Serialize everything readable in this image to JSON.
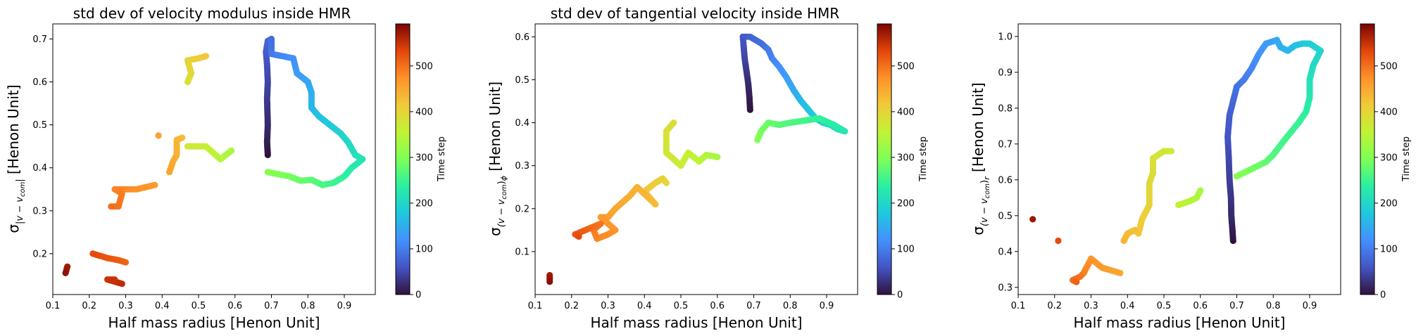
{
  "figure": {
    "colorbar_label": "Time step",
    "colormap": "turbo",
    "colorbar_ticks": [
      0,
      100,
      200,
      300,
      400,
      500
    ],
    "time_range": [
      0,
      592
    ]
  },
  "chart_data": [
    {
      "type": "scatter",
      "title": "std dev of velocity modulus inside HMR",
      "xlabel": "Half mass radius [Henon Unit]",
      "ylabel_main": "σ",
      "ylabel_sub": "|v − v",
      "ylabel_subsub": "com",
      "ylabel_subend": "|",
      "ylabel_rest": " [Henon Unit]",
      "xlim": [
        0.1,
        0.985
      ],
      "ylim": [
        0.105,
        0.735
      ],
      "xticks": [
        0.1,
        0.2,
        0.3,
        0.4,
        0.5,
        0.6,
        0.7,
        0.8,
        0.9
      ],
      "xticklabels": [
        "0.1",
        "0.2",
        "0.3",
        "0.4",
        "0.5",
        "0.6",
        "0.7",
        "0.8",
        "0.9"
      ],
      "yticks": [
        0.2,
        0.3,
        0.4,
        0.5,
        0.6,
        0.7
      ],
      "yticklabels": [
        "0.2",
        "0.3",
        "0.4",
        "0.5",
        "0.6",
        "0.7"
      ],
      "trajectory": [
        [
          0.69,
          0.43,
          0
        ],
        [
          0.688,
          0.46,
          10
        ],
        [
          0.69,
          0.5,
          20
        ],
        [
          0.688,
          0.56,
          35
        ],
        [
          0.69,
          0.6,
          45
        ],
        [
          0.688,
          0.64,
          55
        ],
        [
          0.685,
          0.67,
          65
        ],
        [
          0.69,
          0.695,
          75
        ],
        [
          0.7,
          0.7,
          85
        ],
        [
          0.7,
          0.665,
          95
        ],
        [
          0.73,
          0.66,
          110
        ],
        [
          0.76,
          0.655,
          120
        ],
        [
          0.77,
          0.62,
          130
        ],
        [
          0.8,
          0.6,
          140
        ],
        [
          0.81,
          0.575,
          150
        ],
        [
          0.81,
          0.54,
          160
        ],
        [
          0.83,
          0.52,
          170
        ],
        [
          0.86,
          0.5,
          180
        ],
        [
          0.89,
          0.48,
          190
        ],
        [
          0.91,
          0.46,
          200
        ],
        [
          0.93,
          0.43,
          210
        ],
        [
          0.95,
          0.42,
          218
        ],
        [
          0.92,
          0.4,
          228
        ],
        [
          0.9,
          0.38,
          238
        ],
        [
          0.87,
          0.365,
          250
        ],
        [
          0.84,
          0.36,
          260
        ],
        [
          0.81,
          0.372,
          270
        ],
        [
          0.78,
          0.37,
          280
        ],
        [
          0.75,
          0.38,
          290
        ],
        [
          0.72,
          0.385,
          298
        ],
        [
          0.69,
          0.39,
          305
        ],
        [
          0.59,
          0.44,
          330
        ],
        [
          0.575,
          0.43,
          338
        ],
        [
          0.56,
          0.42,
          345
        ],
        [
          0.52,
          0.45,
          360
        ],
        [
          0.47,
          0.45,
          370
        ],
        [
          0.47,
          0.6,
          385
        ],
        [
          0.48,
          0.62,
          392
        ],
        [
          0.47,
          0.65,
          400
        ],
        [
          0.5,
          0.655,
          410
        ],
        [
          0.52,
          0.66,
          418
        ],
        [
          0.455,
          0.47,
          428
        ],
        [
          0.44,
          0.465,
          434
        ],
        [
          0.44,
          0.43,
          440
        ],
        [
          0.43,
          0.415,
          446
        ],
        [
          0.42,
          0.39,
          452
        ],
        [
          0.39,
          0.475,
          458
        ],
        [
          0.38,
          0.36,
          465
        ],
        [
          0.33,
          0.35,
          472
        ],
        [
          0.3,
          0.35,
          478
        ],
        [
          0.27,
          0.35,
          484
        ],
        [
          0.29,
          0.34,
          490
        ],
        [
          0.28,
          0.31,
          496
        ],
        [
          0.26,
          0.31,
          500
        ],
        [
          0.3,
          0.18,
          508
        ],
        [
          0.28,
          0.185,
          514
        ],
        [
          0.25,
          0.19,
          520
        ],
        [
          0.21,
          0.2,
          530
        ],
        [
          0.27,
          0.14,
          540
        ],
        [
          0.25,
          0.14,
          548
        ],
        [
          0.29,
          0.13,
          555
        ],
        [
          0.14,
          0.17,
          570
        ],
        [
          0.135,
          0.155,
          580
        ]
      ]
    },
    {
      "type": "scatter",
      "title": "std dev of tangential velocity inside HMR",
      "xlabel": "Half mass radius [Henon Unit]",
      "ylabel_main": "σ",
      "ylabel_sub": "(v − v",
      "ylabel_subsub": "com",
      "ylabel_subend": ")",
      "ylabel_phi": "ϕ",
      "ylabel_rest": " [Henon Unit]",
      "xlim": [
        0.1,
        0.985
      ],
      "ylim": [
        0.0,
        0.63
      ],
      "xticks": [
        0.1,
        0.2,
        0.3,
        0.4,
        0.5,
        0.6,
        0.7,
        0.8,
        0.9
      ],
      "xticklabels": [
        "0.1",
        "0.2",
        "0.3",
        "0.4",
        "0.5",
        "0.6",
        "0.7",
        "0.8",
        "0.9"
      ],
      "yticks": [
        0.1,
        0.2,
        0.3,
        0.4,
        0.5,
        0.6
      ],
      "yticklabels": [
        "0.1",
        "0.2",
        "0.3",
        "0.4",
        "0.5",
        "0.6"
      ],
      "trajectory": [
        [
          0.69,
          0.43,
          0
        ],
        [
          0.688,
          0.46,
          10
        ],
        [
          0.685,
          0.49,
          20
        ],
        [
          0.68,
          0.52,
          32
        ],
        [
          0.675,
          0.55,
          44
        ],
        [
          0.67,
          0.6,
          60
        ],
        [
          0.69,
          0.6,
          72
        ],
        [
          0.72,
          0.585,
          85
        ],
        [
          0.74,
          0.57,
          95
        ],
        [
          0.75,
          0.55,
          105
        ],
        [
          0.77,
          0.53,
          118
        ],
        [
          0.79,
          0.505,
          130
        ],
        [
          0.81,
          0.475,
          145
        ],
        [
          0.83,
          0.45,
          160
        ],
        [
          0.85,
          0.43,
          172
        ],
        [
          0.87,
          0.41,
          185
        ],
        [
          0.89,
          0.4,
          195
        ],
        [
          0.91,
          0.395,
          205
        ],
        [
          0.93,
          0.385,
          215
        ],
        [
          0.95,
          0.38,
          222
        ],
        [
          0.92,
          0.395,
          232
        ],
        [
          0.88,
          0.41,
          242
        ],
        [
          0.84,
          0.405,
          252
        ],
        [
          0.8,
          0.4,
          262
        ],
        [
          0.77,
          0.395,
          270
        ],
        [
          0.74,
          0.4,
          280
        ],
        [
          0.72,
          0.38,
          290
        ],
        [
          0.71,
          0.36,
          298
        ],
        [
          0.6,
          0.32,
          330
        ],
        [
          0.57,
          0.325,
          340
        ],
        [
          0.55,
          0.31,
          350
        ],
        [
          0.52,
          0.33,
          358
        ],
        [
          0.5,
          0.3,
          365
        ],
        [
          0.46,
          0.33,
          372
        ],
        [
          0.46,
          0.38,
          380
        ],
        [
          0.48,
          0.4,
          388
        ],
        [
          0.46,
          0.26,
          395
        ],
        [
          0.45,
          0.27,
          402
        ],
        [
          0.43,
          0.26,
          410
        ],
        [
          0.4,
          0.24,
          418
        ],
        [
          0.42,
          0.22,
          425
        ],
        [
          0.43,
          0.21,
          430
        ],
        [
          0.38,
          0.25,
          438
        ],
        [
          0.36,
          0.23,
          444
        ],
        [
          0.32,
          0.2,
          452
        ],
        [
          0.3,
          0.18,
          458
        ],
        [
          0.28,
          0.18,
          464
        ],
        [
          0.32,
          0.15,
          470
        ],
        [
          0.3,
          0.14,
          476
        ],
        [
          0.27,
          0.13,
          482
        ],
        [
          0.26,
          0.15,
          488
        ],
        [
          0.28,
          0.165,
          494
        ],
        [
          0.21,
          0.14,
          520
        ],
        [
          0.22,
          0.135,
          528
        ],
        [
          0.14,
          0.045,
          570
        ],
        [
          0.14,
          0.03,
          582
        ]
      ]
    },
    {
      "type": "scatter",
      "title": "",
      "xlabel": "Half mass radius [Henon Unit]",
      "ylabel_main": "σ",
      "ylabel_sub": "(v − v",
      "ylabel_subsub": "com",
      "ylabel_subend": ")",
      "ylabel_phi": "r",
      "ylabel_rest": " [Henon Unit]",
      "xlim": [
        0.1,
        0.985
      ],
      "ylim": [
        0.28,
        1.035
      ],
      "xticks": [
        0.1,
        0.2,
        0.3,
        0.4,
        0.5,
        0.6,
        0.7,
        0.8,
        0.9
      ],
      "xticklabels": [
        "0.1",
        "0.2",
        "0.3",
        "0.4",
        "0.5",
        "0.6",
        "0.7",
        "0.8",
        "0.9"
      ],
      "yticks": [
        0.3,
        0.4,
        0.5,
        0.6,
        0.7,
        0.8,
        0.9,
        1.0
      ],
      "yticklabels": [
        "0.3",
        "0.4",
        "0.5",
        "0.6",
        "0.7",
        "0.8",
        "0.9",
        "1.0"
      ],
      "trajectory": [
        [
          0.69,
          0.43,
          0
        ],
        [
          0.688,
          0.46,
          10
        ],
        [
          0.685,
          0.5,
          20
        ],
        [
          0.684,
          0.55,
          30
        ],
        [
          0.68,
          0.6,
          40
        ],
        [
          0.678,
          0.66,
          48
        ],
        [
          0.675,
          0.72,
          58
        ],
        [
          0.68,
          0.78,
          68
        ],
        [
          0.69,
          0.82,
          78
        ],
        [
          0.7,
          0.86,
          88
        ],
        [
          0.72,
          0.88,
          98
        ],
        [
          0.74,
          0.91,
          108
        ],
        [
          0.76,
          0.95,
          118
        ],
        [
          0.78,
          0.98,
          128
        ],
        [
          0.81,
          0.99,
          140
        ],
        [
          0.82,
          0.97,
          150
        ],
        [
          0.84,
          0.96,
          160
        ],
        [
          0.86,
          0.975,
          170
        ],
        [
          0.88,
          0.98,
          178
        ],
        [
          0.9,
          0.98,
          186
        ],
        [
          0.93,
          0.96,
          194
        ],
        [
          0.91,
          0.92,
          204
        ],
        [
          0.9,
          0.88,
          214
        ],
        [
          0.9,
          0.83,
          224
        ],
        [
          0.89,
          0.79,
          234
        ],
        [
          0.87,
          0.76,
          244
        ],
        [
          0.83,
          0.71,
          254
        ],
        [
          0.8,
          0.67,
          264
        ],
        [
          0.78,
          0.65,
          274
        ],
        [
          0.75,
          0.635,
          284
        ],
        [
          0.72,
          0.62,
          294
        ],
        [
          0.7,
          0.61,
          302
        ],
        [
          0.6,
          0.57,
          330
        ],
        [
          0.59,
          0.55,
          338
        ],
        [
          0.57,
          0.54,
          346
        ],
        [
          0.54,
          0.53,
          356
        ],
        [
          0.52,
          0.68,
          365
        ],
        [
          0.5,
          0.68,
          372
        ],
        [
          0.47,
          0.66,
          380
        ],
        [
          0.47,
          0.62,
          388
        ],
        [
          0.46,
          0.59,
          395
        ],
        [
          0.46,
          0.53,
          402
        ],
        [
          0.44,
          0.49,
          410
        ],
        [
          0.43,
          0.45,
          418
        ],
        [
          0.42,
          0.46,
          424
        ],
        [
          0.4,
          0.45,
          430
        ],
        [
          0.39,
          0.43,
          436
        ],
        [
          0.38,
          0.34,
          450
        ],
        [
          0.33,
          0.355,
          462
        ],
        [
          0.3,
          0.38,
          470
        ],
        [
          0.29,
          0.36,
          478
        ],
        [
          0.28,
          0.34,
          486
        ],
        [
          0.27,
          0.33,
          494
        ],
        [
          0.25,
          0.32,
          502
        ],
        [
          0.26,
          0.315,
          510
        ],
        [
          0.21,
          0.43,
          530
        ],
        [
          0.14,
          0.49,
          575
        ]
      ]
    }
  ]
}
